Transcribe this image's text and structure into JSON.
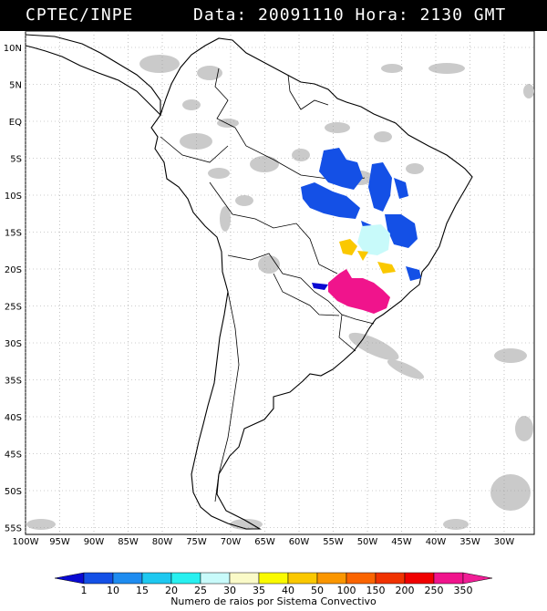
{
  "header": {
    "source": "CPTEC/INPE",
    "date_time": "Data: 20091110 Hora: 2130 GMT"
  },
  "map": {
    "lat_labels": [
      "10N",
      "5N",
      "EQ",
      "5S",
      "10S",
      "15S",
      "20S",
      "25S",
      "30S",
      "35S",
      "40S",
      "45S",
      "50S",
      "55S"
    ],
    "lon_labels": [
      "100W",
      "95W",
      "90W",
      "85W",
      "80W",
      "75W",
      "70W",
      "65W",
      "60W",
      "55W",
      "50W",
      "45W",
      "40W",
      "35W",
      "30W"
    ],
    "colors": {
      "cloud": "#c8c8c8",
      "coast": "#000000",
      "grid": "#9a9a9a"
    }
  },
  "legend": {
    "labels": [
      "1",
      "10",
      "15",
      "20",
      "25",
      "30",
      "35",
      "40",
      "50",
      "100",
      "150",
      "200",
      "250",
      "350"
    ],
    "colors": [
      "#0a0ad2",
      "#1450e6",
      "#1e8cf0",
      "#1ec8f0",
      "#28f0f0",
      "#c8fafa",
      "#fafac8",
      "#fafa00",
      "#fac800",
      "#fa9600",
      "#fa6400",
      "#f03200",
      "#f00000",
      "#f0148c",
      "#f01e96"
    ],
    "caption": "Numero de raios por Sistema Convectivo"
  }
}
